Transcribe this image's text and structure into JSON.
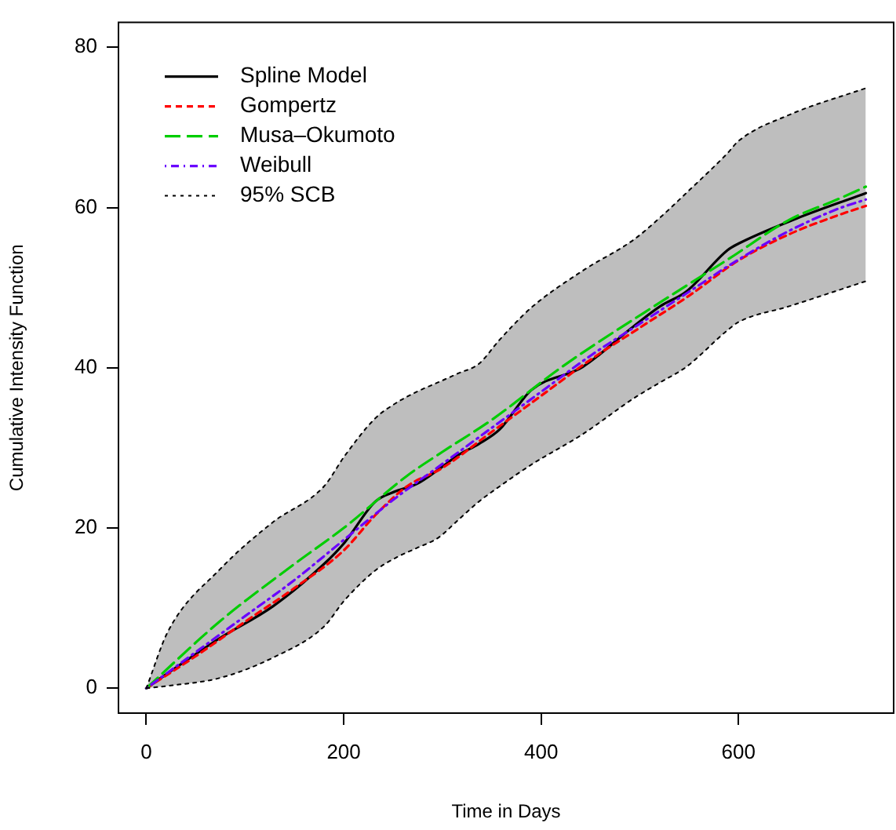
{
  "chart_data": {
    "type": "line",
    "xlabel": "Time in Days",
    "ylabel": "Cumulative Intensity Function",
    "xlim": [
      -29,
      758
    ],
    "xticks": [
      0,
      200,
      400,
      600
    ],
    "ylim": [
      -3.2,
      83.2
    ],
    "yticks": [
      0,
      20,
      40,
      60,
      80
    ],
    "grid": false,
    "legend": "top left",
    "marker": "none",
    "series": [
      {
        "name": "Spline Model",
        "color": "#000000",
        "line_style": "solid",
        "x": [
          0,
          22,
          75,
          128,
          180,
          201,
          232,
          253,
          274,
          296,
          316,
          337,
          358,
          390,
          442,
          494,
          521,
          547,
          589,
          600,
          652,
          729
        ],
        "values": [
          0,
          1.9,
          6.3,
          10.2,
          15.5,
          18.2,
          23.3,
          24.6,
          25.5,
          27.3,
          29.1,
          30.5,
          32.3,
          37.2,
          40.1,
          45.2,
          47.7,
          49.5,
          54.7,
          55.5,
          58.3,
          61.8
        ],
        "lower": [
          0,
          0.3,
          1.3,
          3.8,
          7.7,
          11,
          14.7,
          16.3,
          17.5,
          18.8,
          21,
          23.3,
          25.2,
          27.9,
          31.7,
          36.2,
          38.2,
          40.1,
          44.7,
          45.7,
          47.7,
          50.8
        ],
        "upper": [
          0,
          7.1,
          14.9,
          20.7,
          25.2,
          29,
          33.7,
          35.6,
          37,
          38.2,
          39.3,
          40.5,
          43.5,
          47.5,
          52.1,
          56,
          58.8,
          61.8,
          66.8,
          68.3,
          71.6,
          74.9
        ]
      },
      {
        "name": "Gompertz",
        "color": "#ff0000",
        "line_style": "dashed",
        "x": [
          0,
          50,
          100,
          150,
          200,
          232,
          264,
          300,
          350,
          400,
          450,
          500,
          550,
          600,
          652,
          700,
          729
        ],
        "values": [
          0,
          4,
          8.3,
          12.5,
          17.2,
          21.6,
          25.2,
          27.5,
          32,
          36.5,
          41,
          45,
          49,
          53.4,
          56.7,
          59,
          60.2
        ]
      },
      {
        "name": "Musa–Okumoto",
        "color": "#00cd00",
        "line_style": "longdash",
        "x": [
          0,
          75,
          150,
          200,
          264,
          300,
          350,
          421,
          530,
          589,
          652,
          700,
          729
        ],
        "values": [
          0,
          8.4,
          15.5,
          20,
          26.5,
          29.5,
          33.5,
          40.1,
          48.9,
          53.5,
          58.5,
          61,
          62.6
        ]
      },
      {
        "name": "Weibull",
        "color": "#6a00ff",
        "line_style": "dashdot",
        "x": [
          0,
          50,
          100,
          150,
          200,
          250,
          300,
          350,
          400,
          450,
          500,
          550,
          600,
          650,
          700,
          729
        ],
        "values": [
          0,
          4.5,
          9,
          13.5,
          18.5,
          23.5,
          28,
          32.5,
          37,
          41.5,
          45.5,
          49.5,
          53.5,
          57,
          59.8,
          61
        ]
      },
      {
        "name": "95% SCB",
        "color": "#000000",
        "line_style": "dotted",
        "x": [
          0,
          22,
          75,
          128,
          180,
          201,
          232,
          253,
          274,
          296,
          316,
          337,
          358,
          390,
          442,
          494,
          521,
          547,
          589,
          600,
          652,
          729
        ],
        "values": [
          0,
          7.1,
          14.9,
          20.7,
          25.2,
          29,
          33.7,
          35.6,
          37,
          38.2,
          39.3,
          40.5,
          43.5,
          47.5,
          52.1,
          56,
          58.8,
          61.8,
          66.8,
          68.3,
          71.6,
          74.9
        ]
      },
      {
        "color": "#000000",
        "line_style": "dotted",
        "x": [
          0,
          22,
          75,
          128,
          180,
          201,
          232,
          253,
          274,
          296,
          316,
          337,
          358,
          390,
          442,
          494,
          521,
          547,
          589,
          600,
          652,
          729
        ],
        "values": [
          0,
          0.3,
          1.3,
          3.8,
          7.7,
          11,
          14.7,
          16.3,
          17.5,
          18.8,
          21,
          23.3,
          25.2,
          27.9,
          31.7,
          36.2,
          38.2,
          40.1,
          44.7,
          45.7,
          47.7,
          50.8
        ]
      }
    ]
  }
}
